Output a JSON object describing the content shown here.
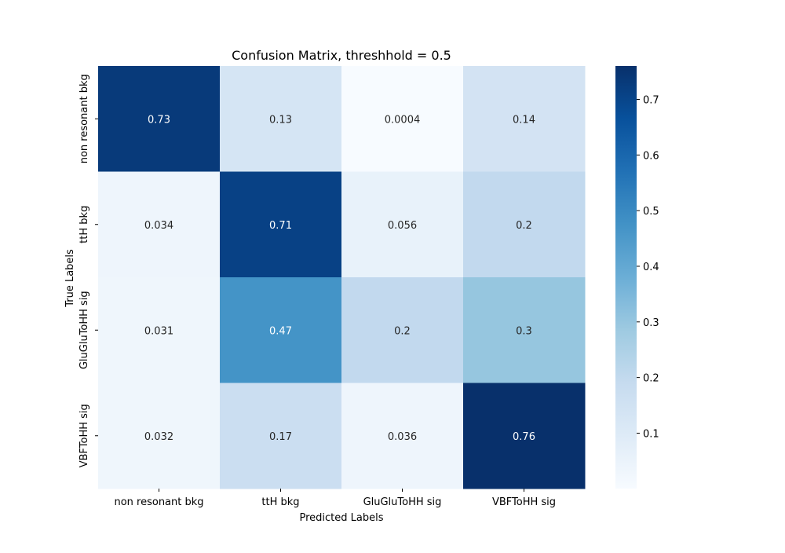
{
  "chart_data": {
    "type": "heatmap",
    "title": "Confusion Matrix, threshhold = 0.5",
    "xlabel": "Predicted Labels",
    "ylabel": "True Labels",
    "x_categories": [
      "non resonant bkg",
      "ttH bkg",
      "GluGluToHH sig",
      "VBFToHH sig"
    ],
    "y_categories": [
      "non resonant bkg",
      "ttH bkg",
      "GluGluToHH sig",
      "VBFToHH sig"
    ],
    "values": [
      [
        0.73,
        0.13,
        0.0004,
        0.14
      ],
      [
        0.034,
        0.71,
        0.056,
        0.2
      ],
      [
        0.031,
        0.47,
        0.2,
        0.3
      ],
      [
        0.032,
        0.17,
        0.036,
        0.76
      ]
    ],
    "cell_labels": [
      [
        "0.73",
        "0.13",
        "0.0004",
        "0.14"
      ],
      [
        "0.034",
        "0.71",
        "0.056",
        "0.2"
      ],
      [
        "0.031",
        "0.47",
        "0.2",
        "0.3"
      ],
      [
        "0.032",
        "0.17",
        "0.036",
        "0.76"
      ]
    ],
    "colormap": "Blues",
    "color_range": [
      0.0004,
      0.76
    ],
    "colorbar_ticks": [
      0.1,
      0.2,
      0.3,
      0.4,
      0.5,
      0.6,
      0.7
    ],
    "colorbar_tick_labels": [
      "0.1",
      "0.2",
      "0.3",
      "0.4",
      "0.5",
      "0.6",
      "0.7"
    ],
    "grid": false,
    "colorbar": true
  }
}
